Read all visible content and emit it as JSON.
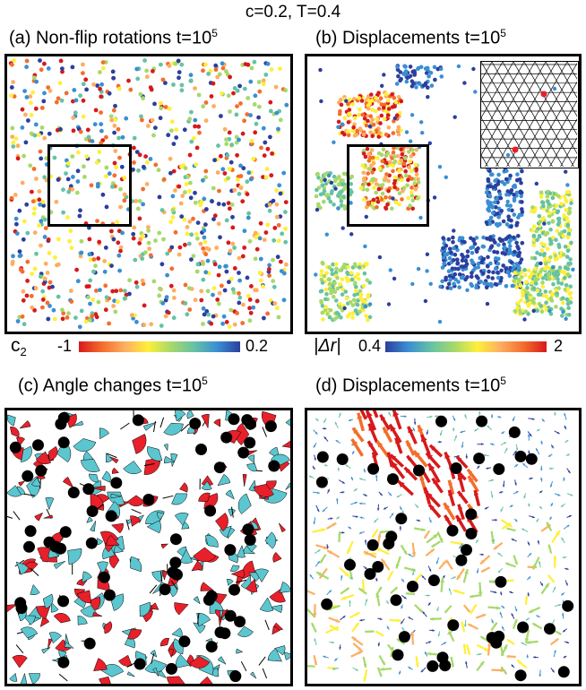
{
  "figure": {
    "title": "c=0.2, T=0.4",
    "panels": {
      "a": {
        "label": "(a) Non-flip rotations  t=10",
        "exp": "5"
      },
      "b": {
        "label": "(b) Displacements  t=10",
        "exp": "5"
      },
      "c": {
        "label": "(c) Angle changes  t=10",
        "exp": "5"
      },
      "d": {
        "label": "(d) Displacements  t=10",
        "exp": "5"
      }
    },
    "colorbars": {
      "left": {
        "symbol": "c",
        "sub": "2",
        "min": "-1",
        "max": "0.2"
      },
      "right": {
        "symbol": "|Δr|",
        "min": "0.4",
        "max": "2"
      }
    },
    "colors": {
      "red": "#e8202a",
      "cyan": "#5bc6cf",
      "black": "#000000",
      "jet": [
        "#d7191c",
        "#f46d2b",
        "#fdae61",
        "#ffef3a",
        "#a6d96a",
        "#66c2a5",
        "#3a8fd2",
        "#2b3f9e"
      ]
    }
  }
}
